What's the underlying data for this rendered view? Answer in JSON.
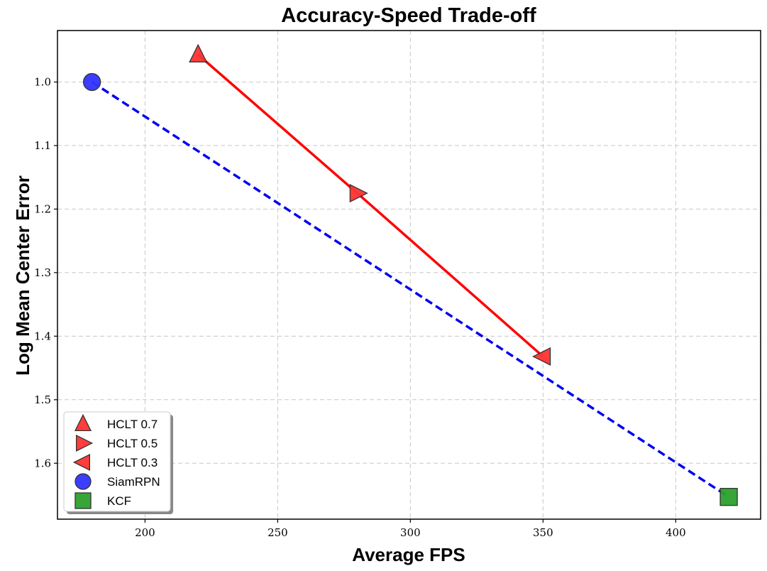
{
  "chart_data": {
    "type": "scatter",
    "title": "Accuracy-Speed Trade-off",
    "xlabel": "Average FPS",
    "ylabel": "Log Mean Center Error",
    "xlim": [
      167,
      432
    ],
    "ylim": [
      1.688,
      0.919
    ],
    "y_inverted": true,
    "x_ticks": [
      200,
      250,
      300,
      350,
      400
    ],
    "y_ticks": [
      1.0,
      1.1,
      1.2,
      1.3,
      1.4,
      1.5,
      1.6
    ],
    "grid": true,
    "legend_position": "bottom-left",
    "series": [
      {
        "name": "HCLT 0.7",
        "marker": "triangle-up",
        "color": "#ff3333",
        "x": 220,
        "y": 0.957
      },
      {
        "name": "HCLT 0.5",
        "marker": "triangle-right",
        "color": "#ff3333",
        "x": 280,
        "y": 1.175
      },
      {
        "name": "HCLT 0.3",
        "marker": "triangle-left",
        "color": "#ff3333",
        "x": 350,
        "y": 1.432
      },
      {
        "name": "SiamRPN",
        "marker": "circle",
        "color": "#3333ff",
        "x": 180,
        "y": 1.0
      },
      {
        "name": "KCF",
        "marker": "square",
        "color": "#2ca02c",
        "x": 420,
        "y": 1.653
      }
    ],
    "lines": [
      {
        "style": "solid",
        "color": "#ff0000",
        "points": [
          [
            220,
            0.957
          ],
          [
            280,
            1.175
          ],
          [
            350,
            1.432
          ]
        ]
      },
      {
        "style": "dashed",
        "color": "#0000ee",
        "points": [
          [
            180,
            1.0
          ],
          [
            420,
            1.653
          ]
        ]
      }
    ]
  }
}
